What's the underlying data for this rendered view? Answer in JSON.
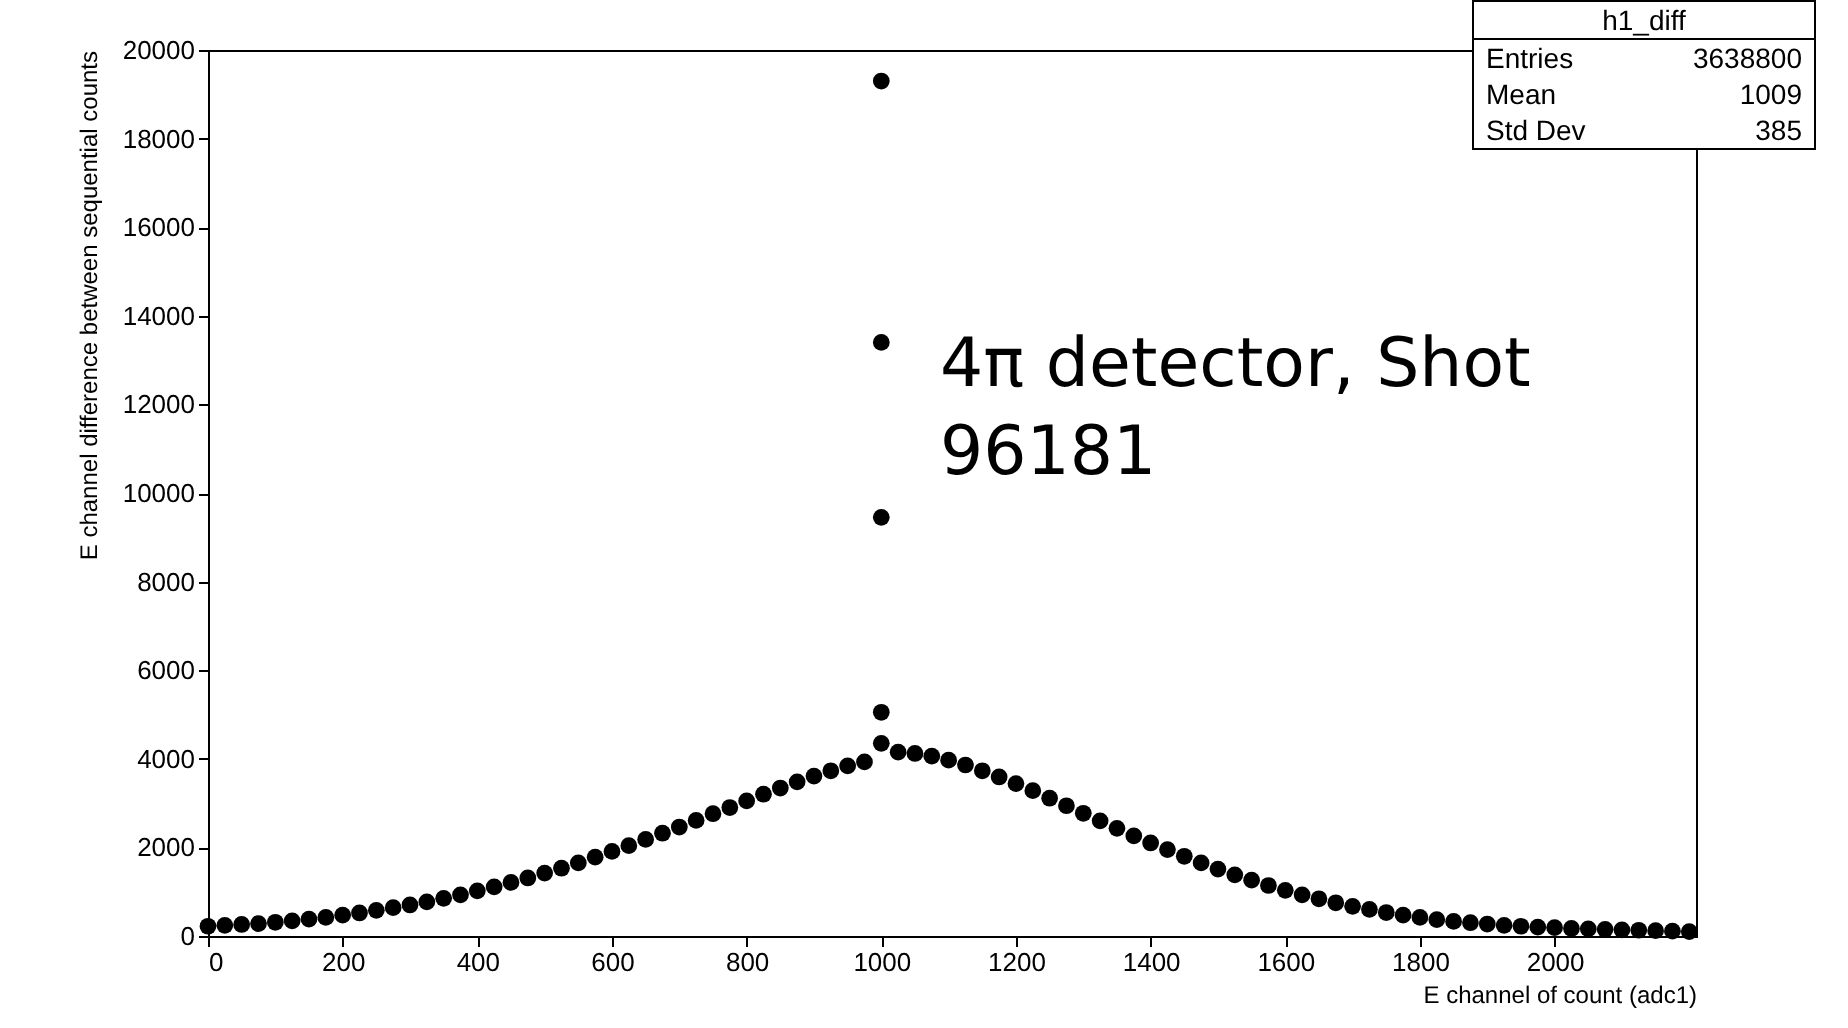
{
  "chart_data": {
    "type": "scatter",
    "xlabel": "E channel of count (adc1)",
    "ylabel": "E channel difference between sequential counts",
    "annotations": [
      "4π detector, Shot 96181",
      "h1_diff",
      "Entries",
      "3638800",
      "Mean",
      "1009",
      "Std Dev",
      "385"
    ],
    "xlim": [
      0,
      2210
    ],
    "xticks": [
      0,
      200,
      400,
      600,
      800,
      1000,
      1200,
      1400,
      1600,
      1800,
      2000
    ],
    "ylim": [
      0,
      20000
    ],
    "yticks": [
      0,
      2000,
      4000,
      6000,
      8000,
      10000,
      12000,
      14000,
      16000,
      18000,
      20000
    ],
    "grid": false,
    "marker": "circle",
    "series": [
      {
        "color": "#000000",
        "x": [
          0,
          25,
          50,
          75,
          100,
          125,
          150,
          175,
          200,
          225,
          250,
          275,
          300,
          325,
          350,
          375,
          400,
          425,
          450,
          475,
          500,
          525,
          550,
          575,
          600,
          625,
          650,
          675,
          700,
          725,
          750,
          775,
          800,
          825,
          850,
          875,
          900,
          925,
          950,
          975,
          1000,
          1025,
          1050,
          1075,
          1100,
          1125,
          1150,
          1175,
          1200,
          1225,
          1250,
          1275,
          1300,
          1325,
          1350,
          1375,
          1400,
          1425,
          1450,
          1475,
          1500,
          1525,
          1550,
          1575,
          1600,
          1625,
          1650,
          1675,
          1700,
          1725,
          1750,
          1775,
          1800,
          1825,
          1850,
          1875,
          1900,
          1925,
          1950,
          1975,
          2000,
          2025,
          2050,
          2075,
          2100,
          2125,
          2150,
          2175,
          2200,
          1000,
          1000,
          1000,
          1000
        ],
        "values": [
          220,
          240,
          260,
          280,
          310,
          340,
          380,
          420,
          470,
          520,
          580,
          640,
          700,
          770,
          850,
          930,
          1020,
          1110,
          1210,
          1310,
          1420,
          1530,
          1650,
          1780,
          1910,
          2040,
          2180,
          2320,
          2460,
          2610,
          2760,
          2900,
          3050,
          3200,
          3340,
          3480,
          3610,
          3730,
          3840,
          3930,
          4350,
          4150,
          4120,
          4060,
          3970,
          3860,
          3730,
          3590,
          3440,
          3280,
          3110,
          2940,
          2770,
          2600,
          2430,
          2260,
          2100,
          1950,
          1800,
          1650,
          1510,
          1380,
          1260,
          1140,
          1030,
          930,
          840,
          750,
          670,
          600,
          530,
          470,
          420,
          370,
          330,
          300,
          270,
          240,
          220,
          200,
          190,
          170,
          160,
          150,
          140,
          130,
          120,
          110,
          100,
          19300,
          13400,
          9450,
          5050
        ]
      }
    ]
  }
}
